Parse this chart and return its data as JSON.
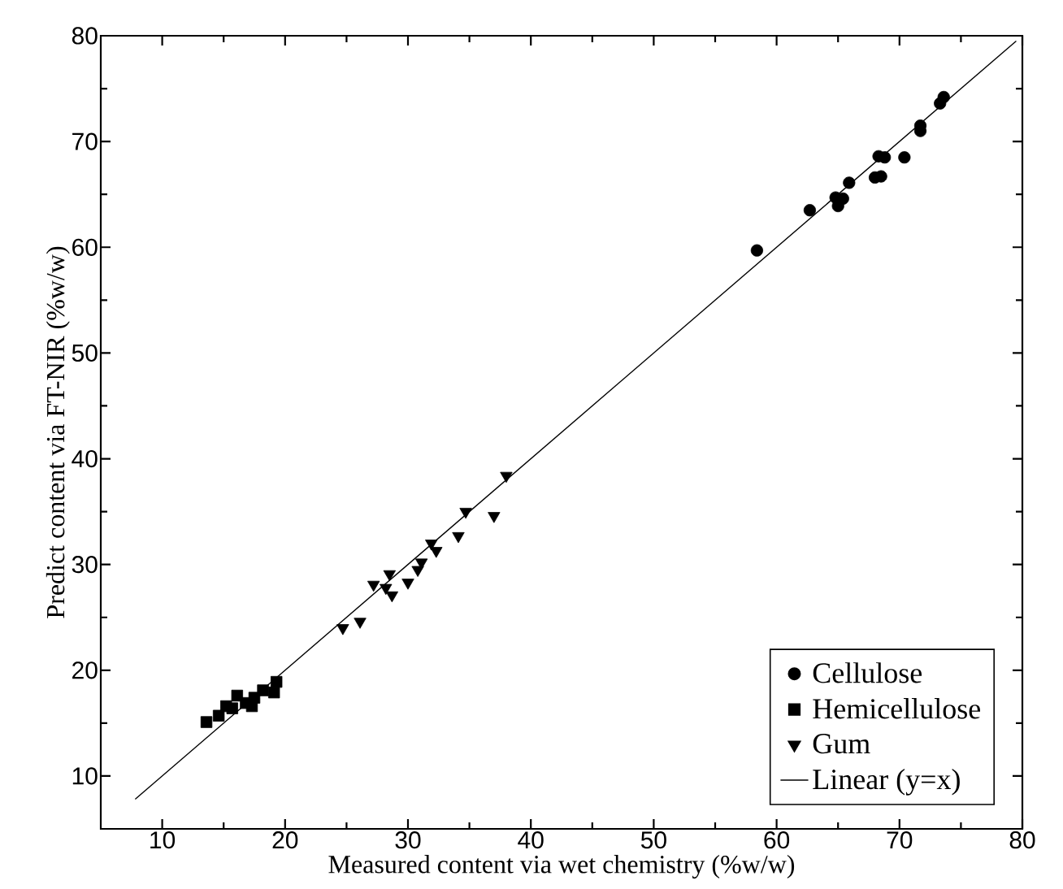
{
  "chart_data": {
    "type": "scatter",
    "xlabel": "Measured content via wet chemistry (%w/w)",
    "ylabel": "Predict content via FT-NIR (%w/w)",
    "xlim": [
      5,
      80
    ],
    "ylim": [
      5,
      80
    ],
    "xticks": [
      10,
      20,
      30,
      40,
      50,
      60,
      70,
      80
    ],
    "yticks": [
      10,
      20,
      30,
      40,
      50,
      60,
      70,
      80
    ],
    "grid": false,
    "legend": "bottom right",
    "series": [
      {
        "name": "Cellulose",
        "color": "#000000",
        "marker": "circle",
        "x": [
          58.4,
          62.7,
          64.8,
          65.0,
          65.4,
          65.9,
          68.0,
          68.5,
          68.3,
          68.8,
          70.4,
          71.7,
          71.7,
          73.3,
          73.6
        ],
        "values": [
          59.7,
          63.5,
          64.7,
          63.9,
          64.6,
          66.1,
          66.6,
          66.7,
          68.6,
          68.5,
          68.5,
          71.0,
          71.5,
          73.6,
          74.2
        ]
      },
      {
        "name": "Hemicellulose",
        "color": "#000000",
        "marker": "square",
        "x": [
          13.6,
          14.6,
          15.2,
          16.1,
          15.7,
          16.8,
          17.3,
          17.5,
          18.2,
          19.1,
          19.3
        ],
        "values": [
          15.1,
          15.7,
          16.6,
          17.6,
          16.4,
          16.9,
          16.6,
          17.4,
          18.1,
          17.9,
          18.9
        ]
      },
      {
        "name": "Gum",
        "color": "#000000",
        "marker": "triangle",
        "x": [
          24.7,
          26.1,
          27.2,
          28.5,
          28.2,
          28.7,
          30.0,
          30.8,
          31.1,
          31.9,
          32.3,
          34.1,
          34.7,
          37.0,
          38.0
        ],
        "values": [
          24.0,
          24.6,
          28.1,
          29.1,
          27.8,
          27.1,
          28.3,
          29.5,
          30.2,
          32.0,
          31.3,
          32.7,
          35.0,
          34.6,
          38.4
        ]
      },
      {
        "name": "Linear (y=x)",
        "color": "#000000",
        "type": "line",
        "marker": "none",
        "line_style": "solid",
        "x": [
          7.8,
          79.5
        ],
        "values": [
          7.8,
          79.5
        ]
      }
    ]
  }
}
